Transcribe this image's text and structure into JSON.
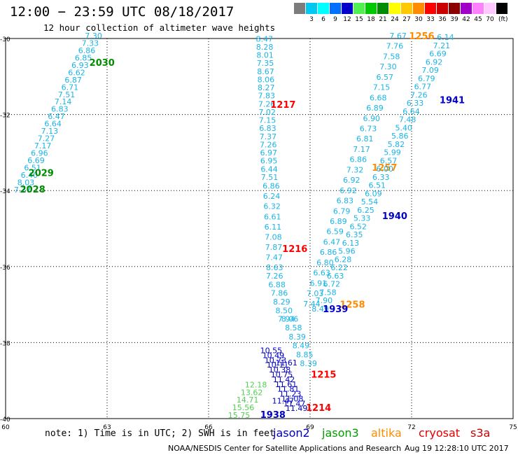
{
  "header": {
    "title": "12:00 − 23:59 UTC 08/18/2017",
    "subtitle": "12 hour collection of altimeter wave heights"
  },
  "legend": {
    "unit": "(ft)",
    "bins": [
      {
        "color": "#7c7c7c",
        "label": ""
      },
      {
        "color": "#00c8f0",
        "label": "3"
      },
      {
        "color": "#00ffff",
        "label": "6"
      },
      {
        "color": "#0070ff",
        "label": "9"
      },
      {
        "color": "#0000c8",
        "label": "12"
      },
      {
        "color": "#50f050",
        "label": "15"
      },
      {
        "color": "#00c800",
        "label": "18"
      },
      {
        "color": "#008c00",
        "label": "21"
      },
      {
        "color": "#ffff00",
        "label": "24"
      },
      {
        "color": "#ffc800",
        "label": "27"
      },
      {
        "color": "#ff8c00",
        "label": "30"
      },
      {
        "color": "#ff0000",
        "label": "33"
      },
      {
        "color": "#c80000",
        "label": "36"
      },
      {
        "color": "#8c0000",
        "label": "39"
      },
      {
        "color": "#a000c8",
        "label": "42"
      },
      {
        "color": "#ff80ff",
        "label": "45"
      },
      {
        "color": "#ffc8ff",
        "label": "70"
      },
      {
        "color": "#000000",
        "label": ""
      }
    ]
  },
  "chart_data": {
    "type": "scatter",
    "xlim": [
      60,
      75
    ],
    "ylim": [
      -40,
      -30
    ],
    "x_ticks": [
      60,
      63,
      66,
      69,
      72,
      75
    ],
    "y_ticks": [
      -30,
      -32,
      -34,
      -36,
      -38,
      -40
    ],
    "grid": true,
    "colors": {
      "light": "#1ab4e6",
      "dark": "#0000c8",
      "green": "#50d050",
      "darkgreen": "#008c00"
    },
    "tracks": [
      {
        "pass_labels": [
          {
            "text": "2030",
            "lon": 62.85,
            "lat": -30.72,
            "color": "#008c00"
          },
          {
            "text": "2029",
            "lon": 61.05,
            "lat": -33.62,
            "color": "#008c00"
          },
          {
            "text": "2028",
            "lon": 60.8,
            "lat": -34.05,
            "color": "#008c00"
          }
        ],
        "start": [
          62.6,
          -30.0
        ],
        "end": [
          60.5,
          -34.05
        ],
        "values": [
          "7.30",
          "7.33",
          "6.86",
          "6.85",
          "6.93",
          "6.62",
          "6.87",
          "6.71",
          "7.51",
          "7.14",
          "6.83",
          "6.47",
          "6.64",
          "7.13",
          "7.27",
          "7.17",
          "6.96",
          "6.69",
          "6.51",
          "6.40",
          "8.03",
          "7.27"
        ],
        "colors": [
          "light"
        ]
      },
      {
        "pass_labels": [
          {
            "text": "1217",
            "lon": 68.2,
            "lat": -31.82,
            "color": "#ff0000"
          }
        ],
        "start": [
          67.65,
          -30.08
        ],
        "end": [
          67.8,
          -33.72
        ],
        "values": [
          "8.47",
          "8.28",
          "8.01",
          "7.35",
          "8.67",
          "8.06",
          "8.27",
          "7.83",
          "7.26",
          "7.02",
          "7.15",
          "6.83",
          "7.37",
          "7.26",
          "6.97",
          "6.95",
          "6.44",
          "7.51"
        ],
        "colors": [
          "light"
        ]
      },
      {
        "pass_labels": [
          {
            "text": "1216",
            "lon": 68.55,
            "lat": -35.62,
            "color": "#ff0000"
          }
        ],
        "start": [
          67.85,
          -33.95
        ],
        "end": [
          67.95,
          -36.1
        ],
        "values": [
          "6.86",
          "6.24",
          "6.32",
          "6.61",
          "6.11",
          "7.08",
          "7.87",
          "7.47",
          "8.63"
        ],
        "colors": [
          "light"
        ]
      },
      {
        "pass_labels": [],
        "start": [
          67.95,
          -36.32
        ],
        "end": [
          68.3,
          -37.45
        ],
        "values": [
          "7.26",
          "6.88",
          "7.86",
          "8.29",
          "8.50",
          "7.94"
        ],
        "colors": [
          "light"
        ]
      },
      {
        "pass_labels": [
          {
            "text": "1215",
            "lon": 69.4,
            "lat": -38.92,
            "color": "#ff0000"
          }
        ],
        "start": [
          68.4,
          -37.45
        ],
        "end": [
          68.95,
          -38.62
        ],
        "values": [
          "8.06",
          "8.58",
          "8.39",
          "8.49",
          "8.85",
          "8.39"
        ],
        "colors": [
          "light"
        ]
      },
      {
        "pass_labels": [
          {
            "text": "1214",
            "lon": 69.25,
            "lat": -39.8,
            "color": "#ff0000"
          }
        ],
        "start": [
          67.85,
          -38.28
        ],
        "end": [
          68.6,
          -39.8
        ],
        "values": [
          "10.55",
          "10.49",
          "10.73",
          "10.11",
          "10.38",
          "10.75",
          "11.42",
          "11.61",
          "11.81",
          "11.23",
          "11.08",
          "11.47",
          "11.49"
        ],
        "colors": [
          "dark"
        ]
      },
      {
        "pass_labels": [],
        "start": [
          67.4,
          -39.18
        ],
        "end": [
          66.9,
          -39.98
        ],
        "values": [
          "12.18",
          "13.62",
          "14.71",
          "15.56",
          "15.75"
        ],
        "colors": [
          "green"
        ]
      },
      {
        "pass_labels": [
          {
            "text": "1256",
            "lon": 72.3,
            "lat": -30.02,
            "color": "#ff8c00"
          },
          {
            "text": "1257",
            "lon": 71.2,
            "lat": -33.48,
            "color": "#ff8c00"
          },
          {
            "text": "1258",
            "lon": 70.25,
            "lat": -37.08,
            "color": "#ff8c00"
          }
        ],
        "start": [
          71.6,
          -30.0
        ],
        "end": [
          69.05,
          -37.05
        ],
        "values": [
          "7.67",
          "7.76",
          "7.58",
          "7.30",
          "6.57",
          "7.15",
          "6.68",
          "6.89",
          "6.90",
          "6.73",
          "6.81",
          "7.17",
          "6.86",
          "7.32",
          "6.92",
          "6.92",
          "6.83",
          "6.79",
          "6.89",
          "6.59",
          "6.47",
          "6.86",
          "6.80",
          "6.63",
          "6.91",
          "7.03",
          "7.44"
        ],
        "colors": [
          "light"
        ]
      },
      {
        "pass_labels": [
          {
            "text": "1941",
            "lon": 73.2,
            "lat": -31.7,
            "color": "#0000c8"
          },
          {
            "text": "1940",
            "lon": 71.5,
            "lat": -34.75,
            "color": "#0000c8"
          },
          {
            "text": "1939",
            "lon": 69.75,
            "lat": -37.2,
            "color": "#0000c8"
          }
        ],
        "start": [
          73.0,
          -30.04
        ],
        "end": [
          69.3,
          -37.18
        ],
        "values": [
          "6.14",
          "7.21",
          "6.69",
          "6.92",
          "7.09",
          "6.79",
          "6.77",
          "7.26",
          "6.33",
          "6.64",
          "7.48",
          "5.40",
          "5.86",
          "5.82",
          "5.99",
          "6.57",
          "6.00",
          "6.33",
          "6.51",
          "6.09",
          "5.54",
          "6.25",
          "5.33",
          "6.52",
          "6.35",
          "6.13",
          "5.96",
          "6.28",
          "6.22",
          "6.63",
          "6.72",
          "7.58",
          "7.90",
          "8.49"
        ],
        "colors": [
          "light"
        ]
      },
      {
        "pass_labels": [
          {
            "text": "1938",
            "lon": 67.9,
            "lat": -39.98,
            "color": "#0000c8"
          }
        ],
        "start": [
          68.3,
          -38.6
        ],
        "end": [
          68.2,
          -39.6
        ],
        "values": [
          "11.61",
          "11.47"
        ],
        "colors": [
          "dark"
        ]
      }
    ]
  },
  "axis_labels": {
    "y": [
      "-30",
      "-32",
      "-34",
      "-36",
      "-38",
      "-40"
    ],
    "x": [
      "60",
      "63",
      "66",
      "69",
      "72",
      "75"
    ]
  },
  "footer": {
    "note": "note: 1) Time is in UTC; 2) SWH is in feet",
    "satellites": [
      {
        "name": "jason2",
        "color": "#0000c8"
      },
      {
        "name": "jason3",
        "color": "#00a000"
      },
      {
        "name": "altika",
        "color": "#ff8c00"
      },
      {
        "name": "cryosat",
        "color": "#e60000"
      },
      {
        "name": "s3a",
        "color": "#c80000"
      }
    ],
    "credit": "NOAA/NESDIS Center for Satellite Applications and Research",
    "timestamp": "Aug 19 12:28:10 UTC 2017"
  }
}
